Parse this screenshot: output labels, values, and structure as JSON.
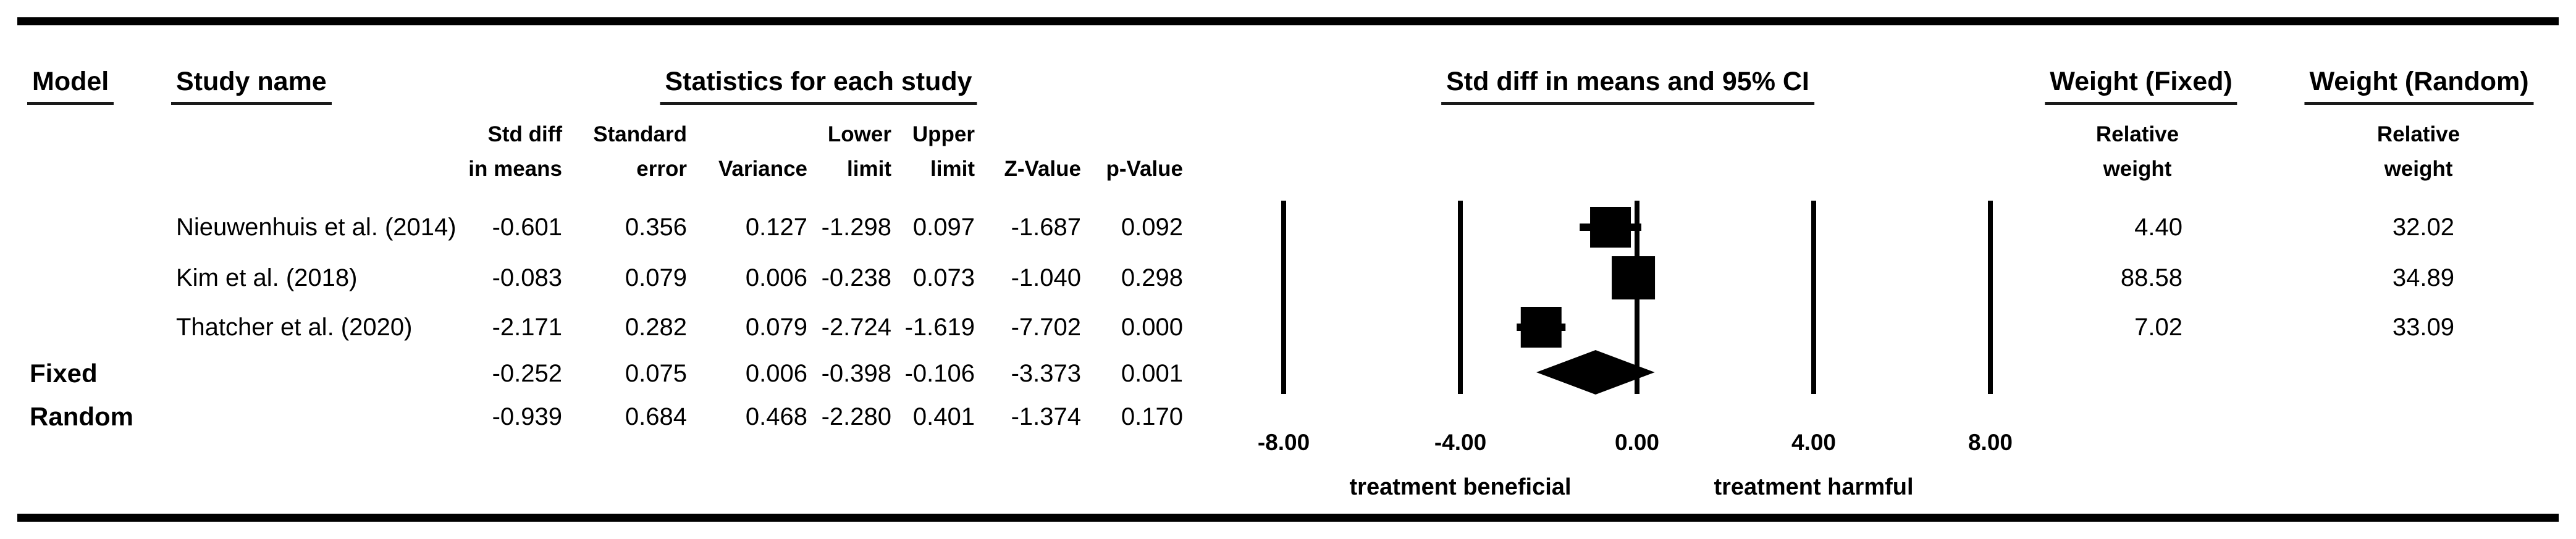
{
  "table": {
    "headers": {
      "model": "Model",
      "study_name": "Study name",
      "statistics_group": "Statistics for each study",
      "plot_group": "Std diff in means and 95% CI",
      "weight_fixed_group": "Weight (Fixed)",
      "weight_random_group": "Weight (Random)"
    },
    "subheaders": {
      "std_diff": [
        "Std diff",
        "in means"
      ],
      "se": [
        "Standard",
        "error"
      ],
      "variance": [
        "",
        "Variance"
      ],
      "lower": [
        "Lower",
        "limit"
      ],
      "upper": [
        "Upper",
        "limit"
      ],
      "z": [
        "",
        "Z-Value"
      ],
      "p": [
        "",
        "p-Value"
      ],
      "weight_fixed": [
        "Relative",
        "weight"
      ],
      "weight_random": [
        "Relative",
        "weight"
      ]
    },
    "rows": [
      {
        "model": "",
        "study": "Nieuwenhuis et al. (2014)",
        "std_diff": "-0.601",
        "se": "0.356",
        "variance": "0.127",
        "lower": "-1.298",
        "upper": "0.097",
        "z": "-1.687",
        "p": "0.092",
        "w_fixed": "4.40",
        "w_random": "32.02"
      },
      {
        "model": "",
        "study": "Kim et al. (2018)",
        "std_diff": "-0.083",
        "se": "0.079",
        "variance": "0.006",
        "lower": "-0.238",
        "upper": "0.073",
        "z": "-1.040",
        "p": "0.298",
        "w_fixed": "88.58",
        "w_random": "34.89"
      },
      {
        "model": "",
        "study": "Thatcher et al. (2020)",
        "std_diff": "-2.171",
        "se": "0.282",
        "variance": "0.079",
        "lower": "-2.724",
        "upper": "-1.619",
        "z": "-7.702",
        "p": "0.000",
        "w_fixed": "7.02",
        "w_random": "33.09"
      },
      {
        "model": "Fixed",
        "study": "",
        "std_diff": "-0.252",
        "se": "0.075",
        "variance": "0.006",
        "lower": "-0.398",
        "upper": "-0.106",
        "z": "-3.373",
        "p": "0.001",
        "w_fixed": "",
        "w_random": ""
      },
      {
        "model": "Random",
        "study": "",
        "std_diff": "-0.939",
        "se": "0.684",
        "variance": "0.468",
        "lower": "-2.280",
        "upper": "0.401",
        "z": "-1.374",
        "p": "0.170",
        "w_fixed": "",
        "w_random": ""
      }
    ]
  },
  "chart_data": {
    "type": "forest",
    "title": "Std diff in means and 95% CI",
    "x_range": [
      -8,
      8
    ],
    "x_ticks": [
      -8,
      -4,
      0,
      4,
      8
    ],
    "x_tick_labels": [
      "-8.00",
      "-4.00",
      "0.00",
      "4.00",
      "8.00"
    ],
    "grid": "vertical-lines-only",
    "axis_note_left": "treatment beneficial",
    "axis_note_right": "treatment harmful",
    "studies": [
      {
        "name": "Nieuwenhuis et al. (2014)",
        "estimate": -0.601,
        "lower": -1.298,
        "upper": 0.097,
        "weight_fixed": 4.4,
        "weight_random": 32.02
      },
      {
        "name": "Kim et al. (2018)",
        "estimate": -0.083,
        "lower": -0.238,
        "upper": 0.073,
        "weight_fixed": 88.58,
        "weight_random": 34.89
      },
      {
        "name": "Thatcher et al. (2020)",
        "estimate": -2.171,
        "lower": -2.724,
        "upper": -1.619,
        "weight_fixed": 7.02,
        "weight_random": 33.09
      }
    ],
    "pooled": {
      "model": "Random",
      "estimate": -0.939,
      "lower": -2.28,
      "upper": 0.401
    },
    "colors": {
      "glyph": "#000000",
      "gridline": "#000000",
      "text": "#000000"
    }
  }
}
